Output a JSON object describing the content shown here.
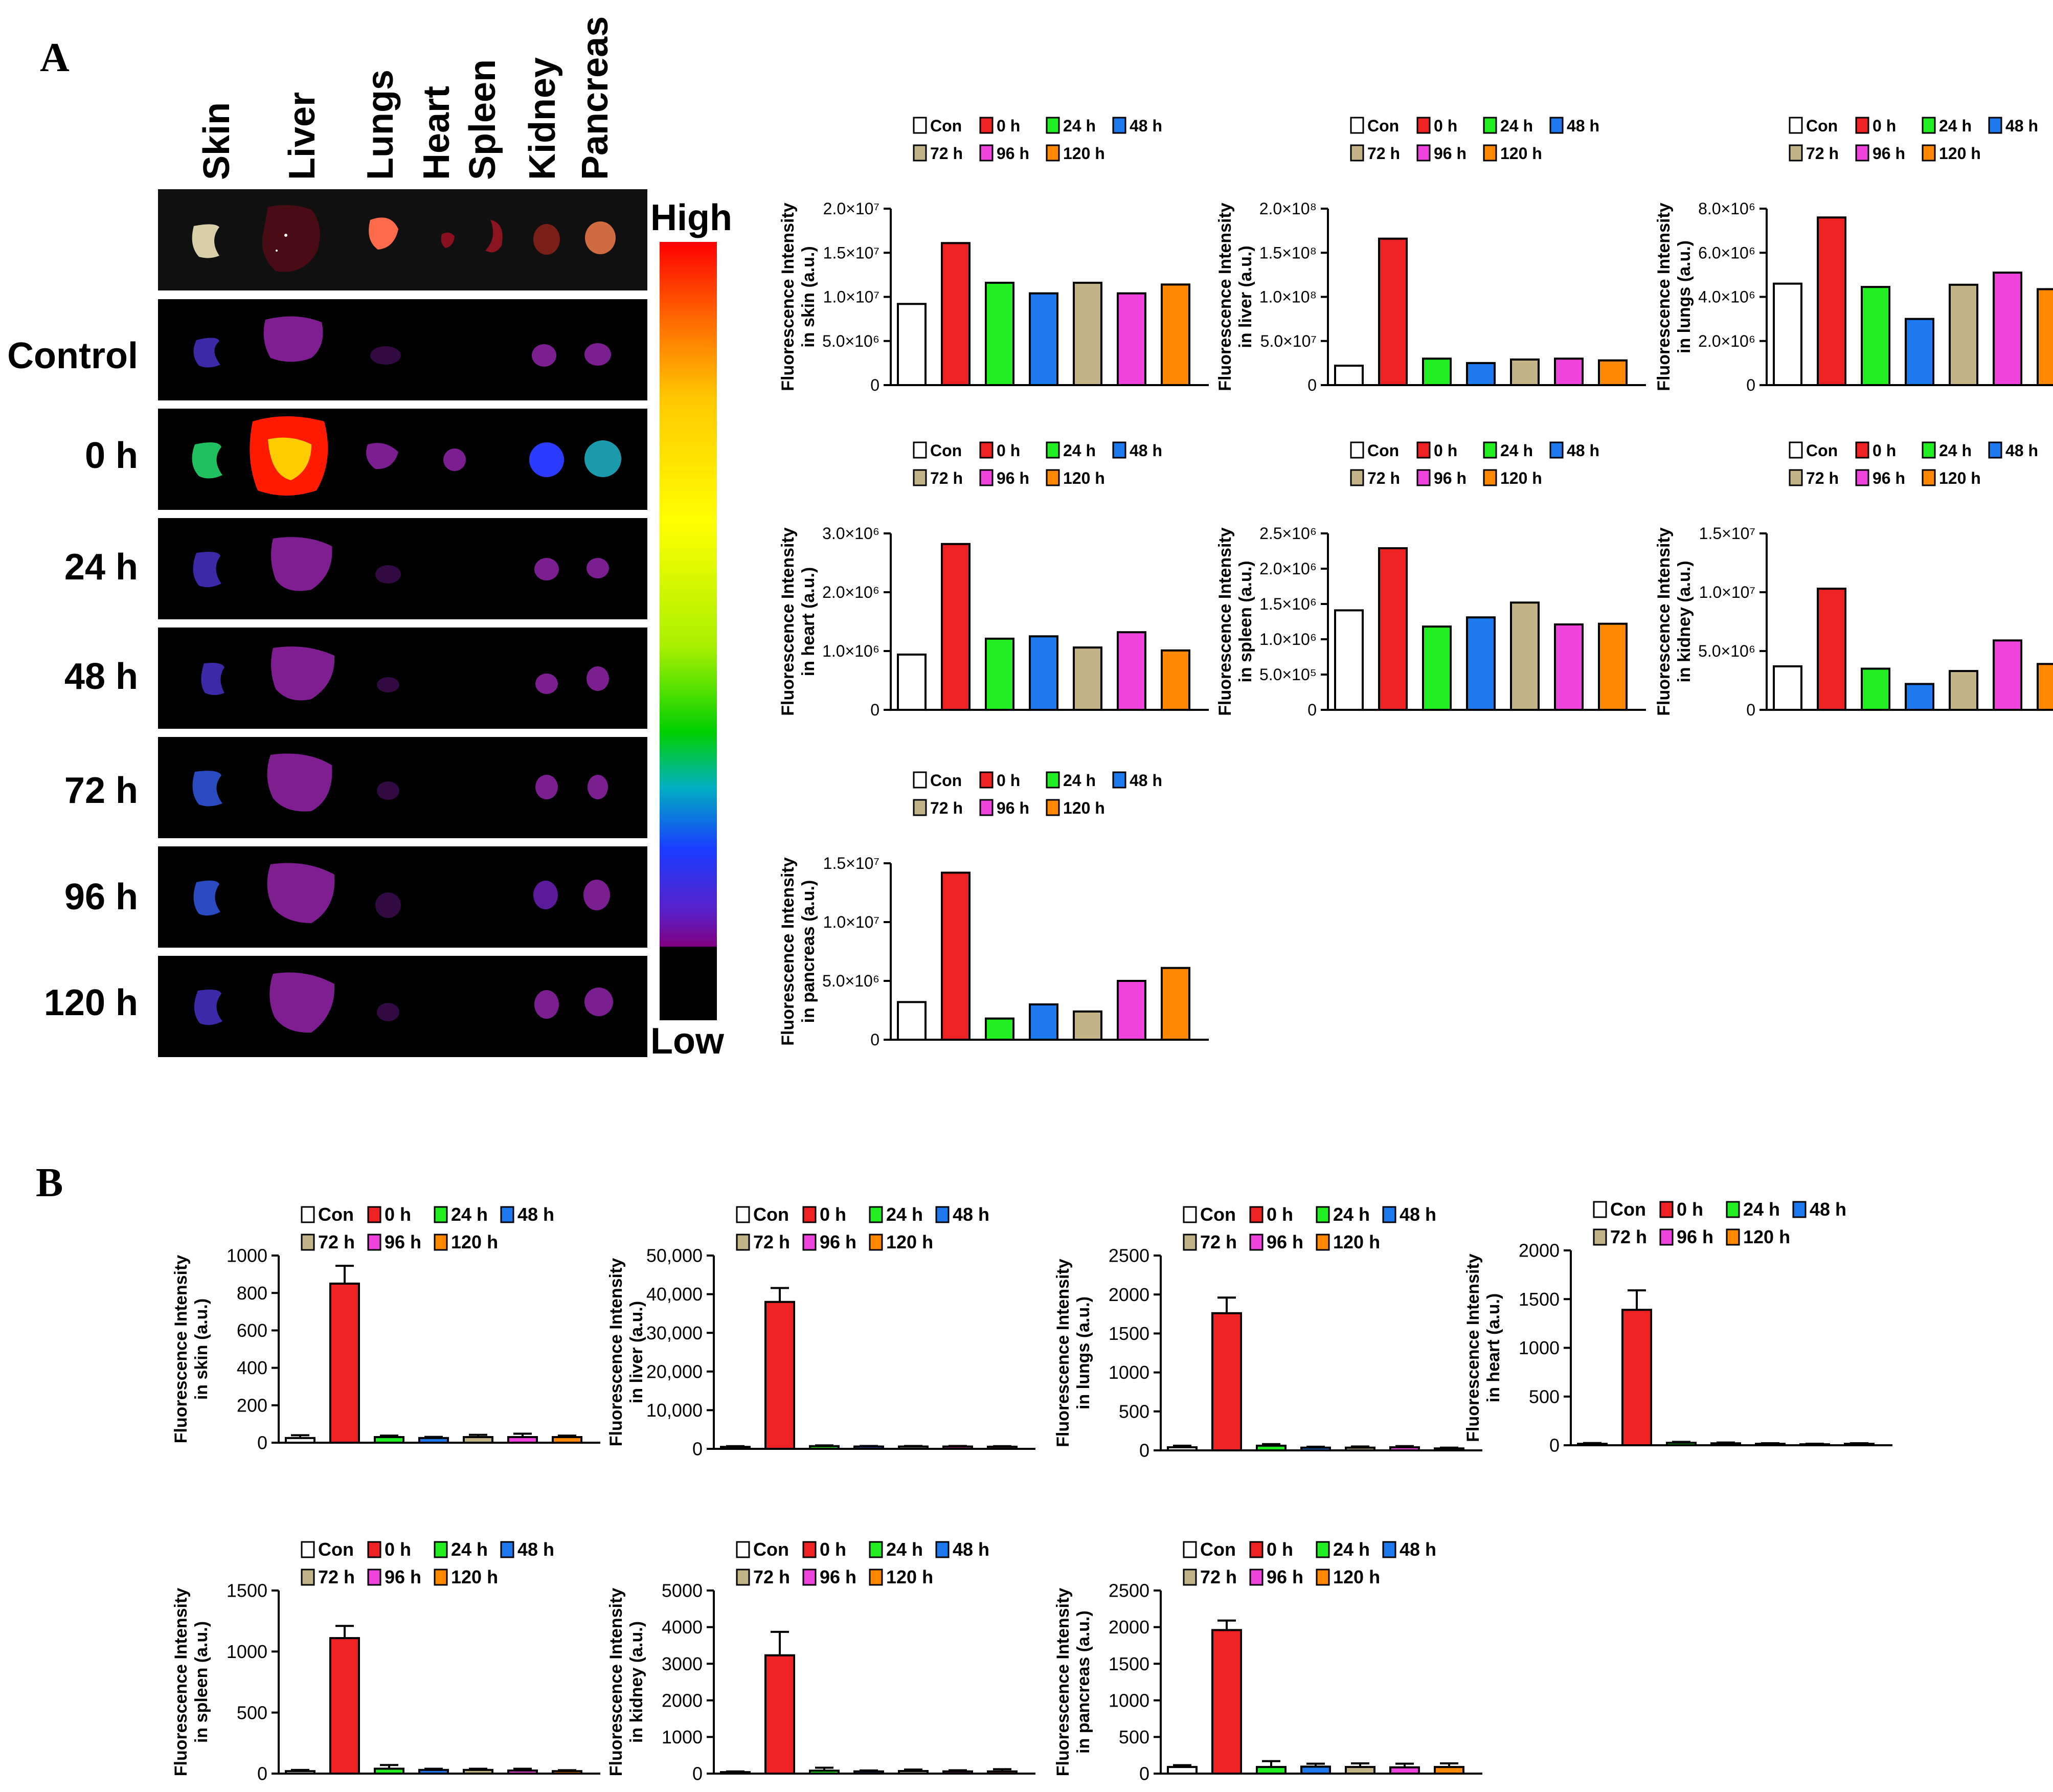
{
  "panels": {
    "a_label": "A",
    "b_label": "B"
  },
  "organs": [
    "Skin",
    "Liver",
    "Lungs",
    "Heart",
    "Spleen",
    "Kidney",
    "Pancreas"
  ],
  "rows": [
    "Control",
    "0 h",
    "24 h",
    "48 h",
    "72 h",
    "96 h",
    "120 h"
  ],
  "scale": {
    "high": "High",
    "low": "Low"
  },
  "legend_labels": [
    "Con",
    "0 h",
    "24 h",
    "48 h",
    "72 h",
    "96 h",
    "120 h"
  ],
  "colors": [
    "#ffffff",
    "#ee2222",
    "#22ee22",
    "#1e78ee",
    "#c3b487",
    "#ee44dd",
    "#ff8800"
  ],
  "chart_data": [
    {
      "type": "bar",
      "panel": "A",
      "organ": "skin",
      "ylabel": [
        "Fluorescence Intensity",
        "in skin (a.u.)"
      ],
      "categories": [
        "Con",
        "0 h",
        "24 h",
        "48 h",
        "72 h",
        "96 h",
        "120 h"
      ],
      "values": [
        9200000,
        16100000,
        11600000,
        10400000,
        11600000,
        10400000,
        11400000
      ],
      "ylim": [
        0,
        20000000
      ],
      "yticks": [
        0,
        5000000,
        10000000,
        15000000,
        20000000
      ],
      "yticklabels": [
        "0",
        "5.0×10⁶",
        "1.0×10⁷",
        "1.5×10⁷",
        "2.0×10⁷"
      ]
    },
    {
      "type": "bar",
      "panel": "A",
      "organ": "liver",
      "ylabel": [
        "Fluorescence Intensity",
        "in liver (a.u.)"
      ],
      "categories": [
        "Con",
        "0 h",
        "24 h",
        "48 h",
        "72 h",
        "96 h",
        "120 h"
      ],
      "values": [
        22000000,
        166000000,
        30000000,
        25000000,
        29000000,
        30000000,
        28000000
      ],
      "ylim": [
        0,
        200000000
      ],
      "yticks": [
        0,
        50000000,
        100000000,
        150000000,
        200000000
      ],
      "yticklabels": [
        "0",
        "5.0×10⁷",
        "1.0×10⁸",
        "1.5×10⁸",
        "2.0×10⁸"
      ]
    },
    {
      "type": "bar",
      "panel": "A",
      "organ": "lungs",
      "ylabel": [
        "Fluorescence Intensity",
        "in lungs (a.u.)"
      ],
      "categories": [
        "Con",
        "0 h",
        "24 h",
        "48 h",
        "72 h",
        "96 h",
        "120 h"
      ],
      "values": [
        4600000,
        7600000,
        4450000,
        3000000,
        4550000,
        5100000,
        4350000
      ],
      "ylim": [
        0,
        8000000
      ],
      "yticks": [
        0,
        2000000,
        4000000,
        6000000,
        8000000
      ],
      "yticklabels": [
        "0",
        "2.0×10⁶",
        "4.0×10⁶",
        "6.0×10⁶",
        "8.0×10⁶"
      ]
    },
    {
      "type": "bar",
      "panel": "A",
      "organ": "heart",
      "ylabel": [
        "Fluorescence Intensity",
        "in heart (a.u.)"
      ],
      "categories": [
        "Con",
        "0 h",
        "24 h",
        "48 h",
        "72 h",
        "96 h",
        "120 h"
      ],
      "values": [
        940000,
        2820000,
        1210000,
        1250000,
        1060000,
        1320000,
        1010000
      ],
      "ylim": [
        0,
        3000000
      ],
      "yticks": [
        0,
        1000000,
        2000000,
        3000000
      ],
      "yticklabels": [
        "0",
        "1.0×10⁶",
        "2.0×10⁶",
        "3.0×10⁶"
      ]
    },
    {
      "type": "bar",
      "panel": "A",
      "organ": "spleen",
      "ylabel": [
        "Fluorescence Intensity",
        "in spleen (a.u.)"
      ],
      "categories": [
        "Con",
        "0 h",
        "24 h",
        "48 h",
        "72 h",
        "96 h",
        "120 h"
      ],
      "values": [
        1410000,
        2290000,
        1180000,
        1310000,
        1520000,
        1210000,
        1220000
      ],
      "ylim": [
        0,
        2500000
      ],
      "yticks": [
        0,
        500000,
        1000000,
        1500000,
        2000000,
        2500000
      ],
      "yticklabels": [
        "0",
        "5.0×10⁵",
        "1.0×10⁶",
        "1.5×10⁶",
        "2.0×10⁶",
        "2.5×10⁶"
      ]
    },
    {
      "type": "bar",
      "panel": "A",
      "organ": "kidney",
      "ylabel": [
        "Fluorescence Intensity",
        "in kidney (a.u.)"
      ],
      "categories": [
        "Con",
        "0 h",
        "24 h",
        "48 h",
        "72 h",
        "96 h",
        "120 h"
      ],
      "values": [
        3700000,
        10300000,
        3500000,
        2200000,
        3300000,
        5900000,
        3900000
      ],
      "ylim": [
        0,
        15000000
      ],
      "yticks": [
        0,
        5000000,
        10000000,
        15000000
      ],
      "yticklabels": [
        "0",
        "5.0×10⁶",
        "1.0×10⁷",
        "1.5×10⁷"
      ]
    },
    {
      "type": "bar",
      "panel": "A",
      "organ": "pancreas",
      "ylabel": [
        "Fluorescence Intensity",
        "in pancreas (a.u.)"
      ],
      "categories": [
        "Con",
        "0 h",
        "24 h",
        "48 h",
        "72 h",
        "96 h",
        "120 h"
      ],
      "values": [
        3200000,
        14200000,
        1800000,
        3000000,
        2400000,
        5000000,
        6100000
      ],
      "ylim": [
        0,
        15000000
      ],
      "yticks": [
        0,
        5000000,
        10000000,
        15000000
      ],
      "yticklabels": [
        "0",
        "5.0×10⁶",
        "1.0×10⁷",
        "1.5×10⁷"
      ]
    },
    {
      "type": "bar",
      "panel": "B",
      "organ": "skin",
      "ylabel": [
        "Fluorescence Intensity",
        "in skin (a.u.)"
      ],
      "categories": [
        "Con",
        "0 h",
        "24 h",
        "48 h",
        "72 h",
        "96 h",
        "120 h"
      ],
      "values": [
        25,
        850,
        30,
        25,
        30,
        30,
        30
      ],
      "errors": [
        15,
        95,
        8,
        6,
        12,
        18,
        8
      ],
      "ylim": [
        0,
        1000
      ],
      "yticks": [
        0,
        200,
        400,
        600,
        800,
        1000
      ],
      "yticklabels": [
        "0",
        "200",
        "400",
        "600",
        "800",
        "1000"
      ]
    },
    {
      "type": "bar",
      "panel": "B",
      "organ": "liver",
      "ylabel": [
        "Fluorescence Intensity",
        "in liver (a.u.)"
      ],
      "categories": [
        "Con",
        "0 h",
        "24 h",
        "48 h",
        "72 h",
        "96 h",
        "120 h"
      ],
      "values": [
        500,
        38000,
        700,
        600,
        600,
        600,
        550
      ],
      "errors": [
        200,
        3600,
        200,
        150,
        150,
        150,
        150
      ],
      "ylim": [
        0,
        50000
      ],
      "yticks": [
        0,
        10000,
        20000,
        30000,
        40000,
        50000
      ],
      "yticklabels": [
        "0",
        "10,000",
        "20,000",
        "30,000",
        "40,000",
        "50,000"
      ]
    },
    {
      "type": "bar",
      "panel": "B",
      "organ": "lungs",
      "ylabel": [
        "Fluorescence Intensity",
        "in lungs (a.u.)"
      ],
      "categories": [
        "Con",
        "0 h",
        "24 h",
        "48 h",
        "72 h",
        "96 h",
        "120 h"
      ],
      "values": [
        40,
        1760,
        60,
        35,
        35,
        40,
        25
      ],
      "errors": [
        20,
        200,
        20,
        12,
        15,
        15,
        10
      ],
      "ylim": [
        0,
        2500
      ],
      "yticks": [
        0,
        500,
        1000,
        1500,
        2000,
        2500
      ],
      "yticklabels": [
        "0",
        "500",
        "1000",
        "1500",
        "2000",
        "2500"
      ]
    },
    {
      "type": "bar",
      "panel": "B",
      "organ": "heart",
      "ylabel": [
        "Fluorescence Intensity",
        "in heart (a.u.)"
      ],
      "categories": [
        "Con",
        "0 h",
        "24 h",
        "48 h",
        "72 h",
        "96 h",
        "120 h"
      ],
      "values": [
        15,
        1390,
        25,
        20,
        15,
        10,
        15
      ],
      "errors": [
        8,
        200,
        10,
        8,
        6,
        6,
        6
      ],
      "ylim": [
        0,
        2000
      ],
      "yticks": [
        0,
        500,
        1000,
        1500,
        2000
      ],
      "yticklabels": [
        "0",
        "500",
        "1000",
        "1500",
        "2000"
      ]
    },
    {
      "type": "bar",
      "panel": "B",
      "organ": "spleen",
      "ylabel": [
        "Fluorescence Intensity",
        "in spleen (a.u.)"
      ],
      "categories": [
        "Con",
        "0 h",
        "24 h",
        "48 h",
        "72 h",
        "96 h",
        "120 h"
      ],
      "values": [
        20,
        1110,
        40,
        30,
        30,
        25,
        20
      ],
      "errors": [
        10,
        100,
        30,
        10,
        10,
        15,
        8
      ],
      "ylim": [
        0,
        1500
      ],
      "yticks": [
        0,
        500,
        1000,
        1500
      ],
      "yticklabels": [
        "0",
        "500",
        "1000",
        "1500"
      ]
    },
    {
      "type": "bar",
      "panel": "B",
      "organ": "kidney",
      "ylabel": [
        "Fluorescence Intensity",
        "in kidney (a.u.)"
      ],
      "categories": [
        "Con",
        "0 h",
        "24 h",
        "48 h",
        "72 h",
        "96 h",
        "120 h"
      ],
      "values": [
        40,
        3230,
        80,
        60,
        70,
        60,
        60
      ],
      "errors": [
        20,
        640,
        80,
        25,
        40,
        30,
        60
      ],
      "ylim": [
        0,
        5000
      ],
      "yticks": [
        0,
        1000,
        2000,
        3000,
        4000,
        5000
      ],
      "yticklabels": [
        "0",
        "1000",
        "2000",
        "3000",
        "4000",
        "5000"
      ]
    },
    {
      "type": "bar",
      "panel": "B",
      "organ": "pancreas",
      "ylabel": [
        "Fluorescence Intensity",
        "in pancreas (a.u.)"
      ],
      "categories": [
        "Con",
        "0 h",
        "24 h",
        "48 h",
        "72 h",
        "96 h",
        "120 h"
      ],
      "values": [
        90,
        1960,
        90,
        95,
        90,
        85,
        90
      ],
      "errors": [
        25,
        130,
        80,
        40,
        50,
        50,
        50
      ],
      "ylim": [
        0,
        2500
      ],
      "yticks": [
        0,
        500,
        1000,
        1500,
        2000,
        2500
      ],
      "yticklabels": [
        "0",
        "500",
        "1000",
        "1500",
        "2000",
        "2500"
      ]
    }
  ]
}
